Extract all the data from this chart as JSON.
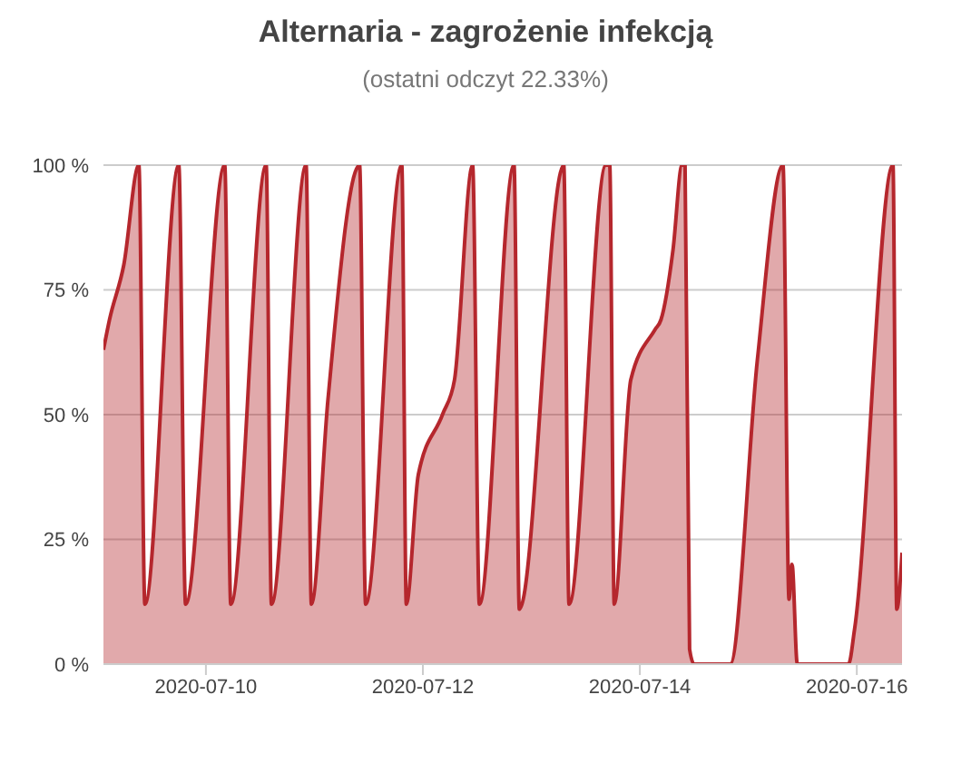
{
  "chart_data": {
    "type": "area",
    "title": "Alternaria - zagrożenie infekcją",
    "subtitle": "(ostatni odczyt 22.33%)",
    "x": [
      "2020-07-09T01:20",
      "2020-07-09T02:40",
      "2020-07-09T05:50",
      "2020-07-09T09:10",
      "2020-07-09T10:30",
      "2020-07-09T18:00",
      "2020-07-09T19:30",
      "2020-07-10T04:10",
      "2020-07-10T05:30",
      "2020-07-10T13:20",
      "2020-07-10T14:30",
      "2020-07-10T22:10",
      "2020-07-10T23:20",
      "2020-07-11T03:00",
      "2020-07-11T10:00",
      "2020-07-11T11:20",
      "2020-07-11T19:20",
      "2020-07-11T20:20",
      "2020-07-11T23:00",
      "2020-07-12T04:20",
      "2020-07-12T07:00",
      "2020-07-12T11:00",
      "2020-07-12T12:30",
      "2020-07-12T20:10",
      "2020-07-12T21:20",
      "2020-07-13T07:10",
      "2020-07-13T08:20",
      "2020-07-13T16:30",
      "2020-07-13T17:20",
      "2020-07-13T18:20",
      "2020-07-13T22:00",
      "2020-07-14T03:20",
      "2020-07-14T04:40",
      "2020-07-14T07:20",
      "2020-07-14T09:20",
      "2020-07-14T10:00",
      "2020-07-14T11:00",
      "2020-07-14T12:00",
      "2020-07-14T20:00",
      "2020-07-15T02:00",
      "2020-07-15T07:40",
      "2020-07-15T09:00",
      "2020-07-15T09:40",
      "2020-07-15T10:50",
      "2020-07-15T22:10",
      "2020-07-15T23:30",
      "2020-07-16T08:00",
      "2020-07-16T08:50",
      "2020-07-16T10:00"
    ],
    "series": [
      {
        "color": "#b5272d",
        "values": [
          63,
          69,
          80,
          100,
          12,
          100,
          12,
          100,
          12,
          100,
          12,
          100,
          12,
          53,
          100,
          12,
          100,
          12,
          38,
          50,
          57,
          100,
          12,
          100,
          11,
          100,
          12,
          100,
          100,
          12,
          57,
          67,
          69,
          83,
          100,
          100,
          3,
          0,
          0,
          61,
          100,
          13,
          20,
          0,
          0,
          7,
          100,
          11,
          22.33
        ]
      }
    ],
    "xlim": [
      "2020-07-09T01:20",
      "2020-07-16T10:00"
    ],
    "xticks": [
      "2020-07-10",
      "2020-07-12",
      "2020-07-14",
      "2020-07-16"
    ],
    "ylim": [
      0,
      100
    ],
    "yticks": [
      {
        "value": 0,
        "label": "0 %"
      },
      {
        "value": 25,
        "label": "25 %"
      },
      {
        "value": 50,
        "label": "50 %"
      },
      {
        "value": 75,
        "label": "75 %"
      },
      {
        "value": 100,
        "label": "100 %"
      }
    ],
    "grid": "y",
    "legend": false,
    "marker": "none",
    "line_style": "solid"
  }
}
